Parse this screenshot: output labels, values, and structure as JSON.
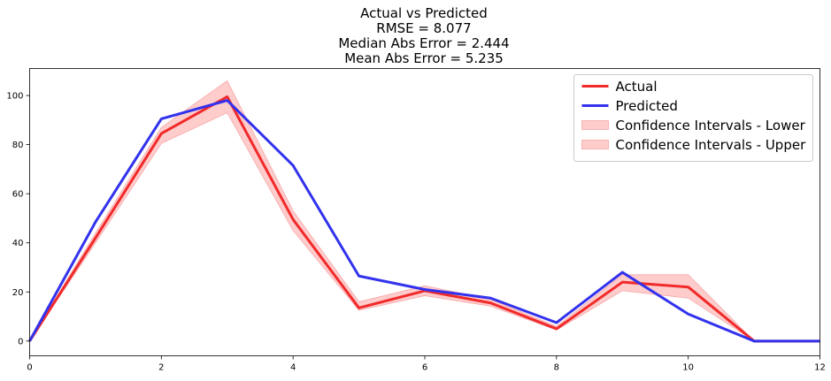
{
  "chart_data": {
    "type": "line",
    "title_lines": [
      "Actual vs Predicted",
      "RMSE = 8.077",
      "Median Abs Error = 2.444",
      "Mean Abs Error = 5.235"
    ],
    "xlim": [
      0,
      12
    ],
    "ylim": [
      -6,
      111
    ],
    "xticks": [
      0,
      2,
      4,
      6,
      8,
      10,
      12
    ],
    "yticks": [
      0,
      20,
      40,
      60,
      80,
      100
    ],
    "grid": false,
    "legend_position": "top-right",
    "colors": {
      "actual": "#f12a2a",
      "predicted": "#3232ee",
      "ci_fill": "#ffcccc",
      "ci_edge": "#f5a8a8"
    },
    "x": [
      0,
      1,
      2,
      3,
      4,
      5,
      6,
      7,
      8,
      9,
      10,
      11,
      12
    ],
    "series": [
      {
        "name": "Actual",
        "role": "actual",
        "values": [
          0,
          42,
          84.5,
          99.5,
          49.5,
          13.5,
          20.5,
          15.5,
          5,
          24,
          22,
          0,
          0
        ]
      },
      {
        "name": "Predicted",
        "role": "predicted",
        "values": [
          0,
          48.5,
          90.5,
          98,
          71.5,
          26.5,
          21,
          17.5,
          7.5,
          28,
          11,
          0,
          0
        ]
      }
    ],
    "confidence_bands": [
      {
        "name": "Confidence Intervals - Lower",
        "values": [
          0,
          40,
          80.5,
          93,
          45,
          12.5,
          18.5,
          14.2,
          4.5,
          20.5,
          17.5,
          0,
          0
        ]
      },
      {
        "name": "Confidence Intervals - Upper",
        "values": [
          0,
          44,
          87,
          106,
          53,
          16,
          22.5,
          17,
          6,
          27,
          27,
          0,
          0
        ]
      }
    ]
  }
}
